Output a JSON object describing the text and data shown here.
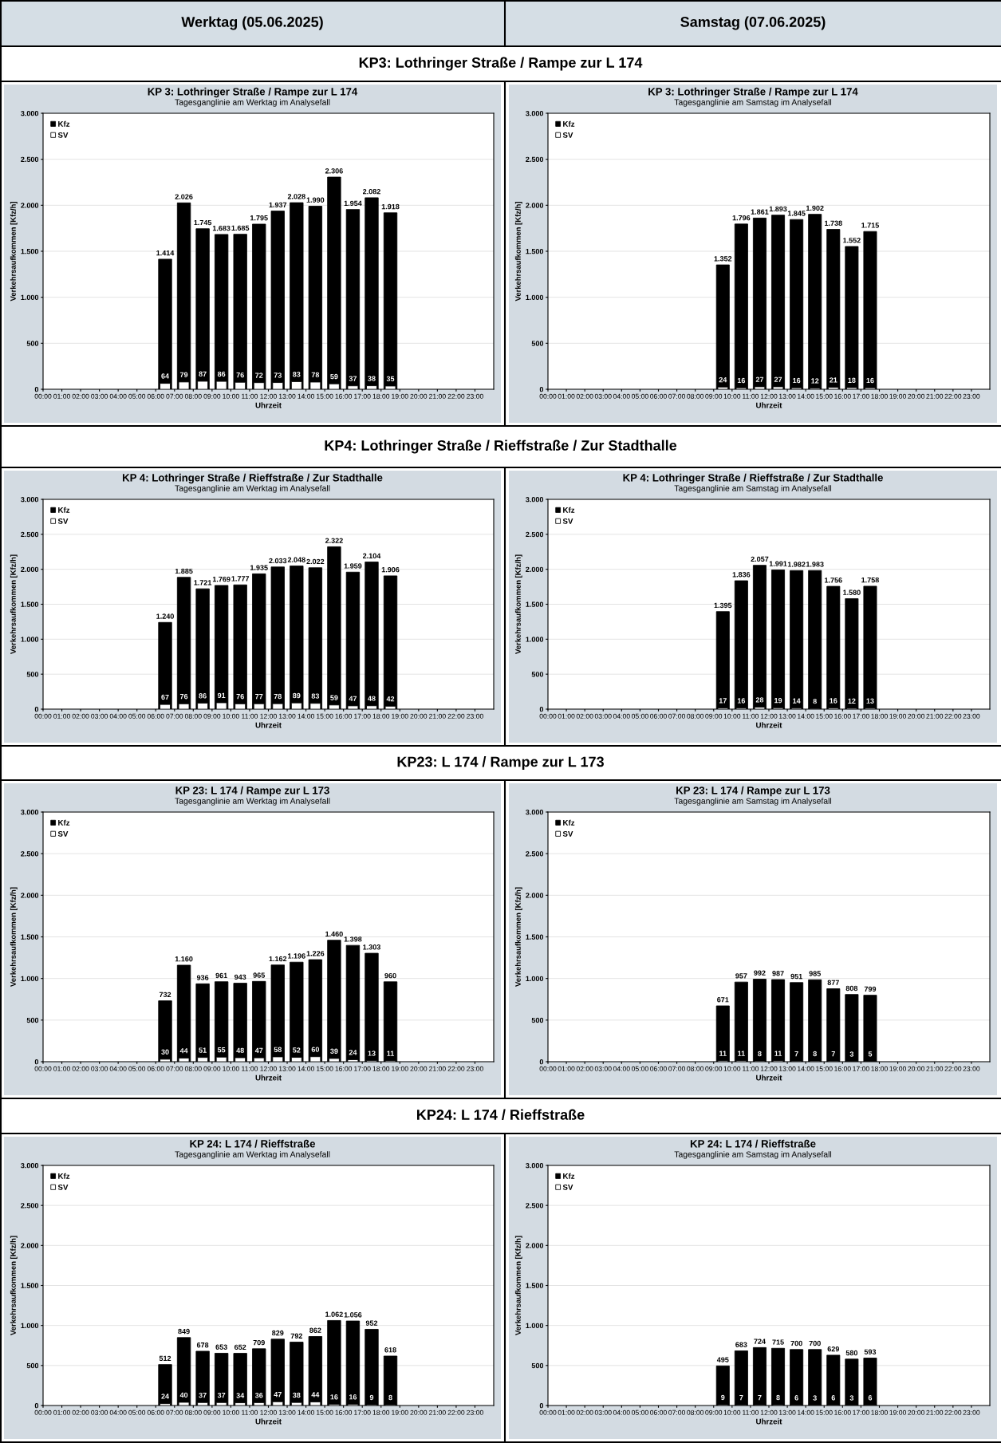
{
  "chart_data": [
    {
      "type": "bar",
      "title": "KP 3: Lothringer Straße / Rampe zur L 174",
      "subtitle": "Tagesganglinie am Werktag im Analysefall",
      "xlabel": "Uhrzeit",
      "ylabel": "Verkehrsaufkommen [Kfz/h]",
      "annotations": [
        "Werktag (05.06.2025)",
        "KP3: Lothringer Straße / Rampe zur L 174"
      ],
      "legend": "top left",
      "grid": "y",
      "xlim": [
        0,
        24
      ],
      "ylim": [
        0,
        3000
      ],
      "xticks": [
        {
          "value": 0,
          "label": "00:00"
        },
        {
          "value": 1,
          "label": "01:00"
        },
        {
          "value": 2,
          "label": "02:00"
        },
        {
          "value": 3,
          "label": "03:00"
        },
        {
          "value": 4,
          "label": "04:00"
        },
        {
          "value": 5,
          "label": "05:00"
        },
        {
          "value": 6,
          "label": "06:00"
        },
        {
          "value": 7,
          "label": "07:00"
        },
        {
          "value": 8,
          "label": "08:00"
        },
        {
          "value": 9,
          "label": "09:00"
        },
        {
          "value": 10,
          "label": "10:00"
        },
        {
          "value": 11,
          "label": "11:00"
        },
        {
          "value": 12,
          "label": "12:00"
        },
        {
          "value": 13,
          "label": "13:00"
        },
        {
          "value": 14,
          "label": "14:00"
        },
        {
          "value": 15,
          "label": "15:00"
        },
        {
          "value": 16,
          "label": "16:00"
        },
        {
          "value": 17,
          "label": "17:00"
        },
        {
          "value": 18,
          "label": "18:00"
        },
        {
          "value": 19,
          "label": "19:00"
        },
        {
          "value": 20,
          "label": "20:00"
        },
        {
          "value": 21,
          "label": "21:00"
        },
        {
          "value": 22,
          "label": "22:00"
        },
        {
          "value": 23,
          "label": "23:00"
        }
      ],
      "yticks": [
        0,
        500,
        {
          "value": 1000,
          "label": "1.000"
        },
        {
          "value": 1500,
          "label": "1.500"
        },
        {
          "value": 2000,
          "label": "2.000"
        },
        {
          "value": 2500,
          "label": "2.500"
        },
        {
          "value": 3000,
          "label": "3.000"
        }
      ],
      "x": [
        6.5,
        7.5,
        8.5,
        9.5,
        10.5,
        11.5,
        12.5,
        13.5,
        14.5,
        15.5,
        16.5,
        17.5,
        18.5
      ],
      "series": [
        {
          "name": "Kfz",
          "color": "#000000",
          "values": [
            1414,
            2026,
            1745,
            1683,
            1685,
            1795,
            1937,
            2028,
            1990,
            2306,
            1954,
            2082,
            1918
          ],
          "value_labels": [
            "1.414",
            "2.026",
            "1.745",
            "1.683",
            "1.685",
            "1.795",
            "1.937",
            "2.028",
            "1.990",
            "2.306",
            "1.954",
            "2.082",
            "1.918"
          ]
        },
        {
          "name": "SV",
          "color": "#ffffff",
          "values": [
            64,
            79,
            87,
            86,
            76,
            72,
            73,
            83,
            78,
            59,
            37,
            38,
            35
          ],
          "value_labels": [
            "64",
            "79",
            "87",
            "86",
            "76",
            "72",
            "73",
            "83",
            "78",
            "59",
            "37",
            "38",
            "35"
          ]
        }
      ]
    },
    {
      "type": "bar",
      "title": "KP 3: Lothringer Straße / Rampe zur L 174",
      "subtitle": "Tagesganglinie am Samstag im Analysefall",
      "xlabel": "Uhrzeit",
      "ylabel": "Verkehrsaufkommen [Kfz/h]",
      "annotations": [
        "Samstag (07.06.2025)"
      ],
      "legend": "top left",
      "grid": "y",
      "xlim": [
        0,
        24
      ],
      "ylim": [
        0,
        3000
      ],
      "xticks": [
        {
          "value": 0,
          "label": "00:00"
        },
        {
          "value": 1,
          "label": "01:00"
        },
        {
          "value": 2,
          "label": "02:00"
        },
        {
          "value": 3,
          "label": "03:00"
        },
        {
          "value": 4,
          "label": "04:00"
        },
        {
          "value": 5,
          "label": "05:00"
        },
        {
          "value": 6,
          "label": "06:00"
        },
        {
          "value": 7,
          "label": "07:00"
        },
        {
          "value": 8,
          "label": "08:00"
        },
        {
          "value": 9,
          "label": "09:00"
        },
        {
          "value": 10,
          "label": "10:00"
        },
        {
          "value": 11,
          "label": "11:00"
        },
        {
          "value": 12,
          "label": "12:00"
        },
        {
          "value": 13,
          "label": "13:00"
        },
        {
          "value": 14,
          "label": "14:00"
        },
        {
          "value": 15,
          "label": "15:00"
        },
        {
          "value": 16,
          "label": "16:00"
        },
        {
          "value": 17,
          "label": "17:00"
        },
        {
          "value": 18,
          "label": "18:00"
        },
        {
          "value": 19,
          "label": "19:00"
        },
        {
          "value": 20,
          "label": "20:00"
        },
        {
          "value": 21,
          "label": "21:00"
        },
        {
          "value": 22,
          "label": "22:00"
        },
        {
          "value": 23,
          "label": "23:00"
        }
      ],
      "yticks": [
        0,
        500,
        {
          "value": 1000,
          "label": "1.000"
        },
        {
          "value": 1500,
          "label": "1.500"
        },
        {
          "value": 2000,
          "label": "2.000"
        },
        {
          "value": 2500,
          "label": "2.500"
        },
        {
          "value": 3000,
          "label": "3.000"
        }
      ],
      "x": [
        9.5,
        10.5,
        11.5,
        12.5,
        13.5,
        14.5,
        15.5,
        16.5,
        17.5
      ],
      "series": [
        {
          "name": "Kfz",
          "color": "#000000",
          "values": [
            1352,
            1796,
            1861,
            1893,
            1845,
            1902,
            1738,
            1552,
            1715
          ],
          "value_labels": [
            "1.352",
            "1.796",
            "1.861",
            "1.893",
            "1.845",
            "1.902",
            "1.738",
            "1.552",
            "1.715"
          ]
        },
        {
          "name": "SV",
          "color": "#ffffff",
          "values": [
            24,
            16,
            27,
            27,
            16,
            12,
            21,
            18,
            16
          ],
          "value_labels": [
            "24",
            "16",
            "27",
            "27",
            "16",
            "12",
            "21",
            "18",
            "16"
          ]
        }
      ]
    },
    {
      "type": "bar",
      "title": "KP 4: Lothringer Straße / Rieffstraße / Zur Stadthalle",
      "subtitle": "Tagesganglinie am Werktag im Analysefall",
      "xlabel": "Uhrzeit",
      "ylabel": "Verkehrsaufkommen [Kfz/h]",
      "annotations": [
        "KP4: Lothringer Straße / Rieffstraße / Zur Stadthalle"
      ],
      "legend": "top left",
      "grid": "y",
      "xlim": [
        0,
        24
      ],
      "ylim": [
        0,
        3000
      ],
      "xticks": [
        {
          "value": 0,
          "label": "00:00"
        },
        {
          "value": 1,
          "label": "01:00"
        },
        {
          "value": 2,
          "label": "02:00"
        },
        {
          "value": 3,
          "label": "03:00"
        },
        {
          "value": 4,
          "label": "04:00"
        },
        {
          "value": 5,
          "label": "05:00"
        },
        {
          "value": 6,
          "label": "06:00"
        },
        {
          "value": 7,
          "label": "07:00"
        },
        {
          "value": 8,
          "label": "08:00"
        },
        {
          "value": 9,
          "label": "09:00"
        },
        {
          "value": 10,
          "label": "10:00"
        },
        {
          "value": 11,
          "label": "11:00"
        },
        {
          "value": 12,
          "label": "12:00"
        },
        {
          "value": 13,
          "label": "13:00"
        },
        {
          "value": 14,
          "label": "14:00"
        },
        {
          "value": 15,
          "label": "15:00"
        },
        {
          "value": 16,
          "label": "16:00"
        },
        {
          "value": 17,
          "label": "17:00"
        },
        {
          "value": 18,
          "label": "18:00"
        },
        {
          "value": 19,
          "label": "19:00"
        },
        {
          "value": 20,
          "label": "20:00"
        },
        {
          "value": 21,
          "label": "21:00"
        },
        {
          "value": 22,
          "label": "22:00"
        },
        {
          "value": 23,
          "label": "23:00"
        }
      ],
      "yticks": [
        0,
        500,
        {
          "value": 1000,
          "label": "1.000"
        },
        {
          "value": 1500,
          "label": "1.500"
        },
        {
          "value": 2000,
          "label": "2.000"
        },
        {
          "value": 2500,
          "label": "2.500"
        },
        {
          "value": 3000,
          "label": "3.000"
        }
      ],
      "x": [
        6.5,
        7.5,
        8.5,
        9.5,
        10.5,
        11.5,
        12.5,
        13.5,
        14.5,
        15.5,
        16.5,
        17.5,
        18.5
      ],
      "series": [
        {
          "name": "Kfz",
          "color": "#000000",
          "values": [
            1240,
            1885,
            1721,
            1769,
            1777,
            1935,
            2033,
            2048,
            2022,
            2322,
            1959,
            2104,
            1906
          ],
          "value_labels": [
            "1.240",
            "1.885",
            "1.721",
            "1.769",
            "1.777",
            "1.935",
            "2.033",
            "2.048",
            "2.022",
            "2.322",
            "1.959",
            "2.104",
            "1.906"
          ]
        },
        {
          "name": "SV",
          "color": "#ffffff",
          "values": [
            67,
            76,
            86,
            91,
            76,
            77,
            78,
            89,
            83,
            59,
            47,
            48,
            42
          ],
          "value_labels": [
            "67",
            "76",
            "86",
            "91",
            "76",
            "77",
            "78",
            "89",
            "83",
            "59",
            "47",
            "48",
            "42"
          ]
        }
      ]
    },
    {
      "type": "bar",
      "title": "KP 4: Lothringer Straße / Rieffstraße / Zur Stadthalle",
      "subtitle": "Tagesganglinie am Samstag im Analysefall",
      "xlabel": "Uhrzeit",
      "ylabel": "Verkehrsaufkommen [Kfz/h]",
      "legend": "top left",
      "grid": "y",
      "xlim": [
        0,
        24
      ],
      "ylim": [
        0,
        3000
      ],
      "xticks": [
        {
          "value": 0,
          "label": "00:00"
        },
        {
          "value": 1,
          "label": "01:00"
        },
        {
          "value": 2,
          "label": "02:00"
        },
        {
          "value": 3,
          "label": "03:00"
        },
        {
          "value": 4,
          "label": "04:00"
        },
        {
          "value": 5,
          "label": "05:00"
        },
        {
          "value": 6,
          "label": "06:00"
        },
        {
          "value": 7,
          "label": "07:00"
        },
        {
          "value": 8,
          "label": "08:00"
        },
        {
          "value": 9,
          "label": "09:00"
        },
        {
          "value": 10,
          "label": "10:00"
        },
        {
          "value": 11,
          "label": "11:00"
        },
        {
          "value": 12,
          "label": "12:00"
        },
        {
          "value": 13,
          "label": "13:00"
        },
        {
          "value": 14,
          "label": "14:00"
        },
        {
          "value": 15,
          "label": "15:00"
        },
        {
          "value": 16,
          "label": "16:00"
        },
        {
          "value": 17,
          "label": "17:00"
        },
        {
          "value": 18,
          "label": "18:00"
        },
        {
          "value": 19,
          "label": "19:00"
        },
        {
          "value": 20,
          "label": "20:00"
        },
        {
          "value": 21,
          "label": "21:00"
        },
        {
          "value": 22,
          "label": "22:00"
        },
        {
          "value": 23,
          "label": "23:00"
        }
      ],
      "yticks": [
        0,
        500,
        {
          "value": 1000,
          "label": "1.000"
        },
        {
          "value": 1500,
          "label": "1.500"
        },
        {
          "value": 2000,
          "label": "2.000"
        },
        {
          "value": 2500,
          "label": "2.500"
        },
        {
          "value": 3000,
          "label": "3.000"
        }
      ],
      "x": [
        9.5,
        10.5,
        11.5,
        12.5,
        13.5,
        14.5,
        15.5,
        16.5,
        17.5
      ],
      "series": [
        {
          "name": "Kfz",
          "color": "#000000",
          "values": [
            1395,
            1836,
            2057,
            1991,
            1982,
            1983,
            1756,
            1580,
            1758
          ],
          "value_labels": [
            "1.395",
            "1.836",
            "2.057",
            "1.991",
            "1.982",
            "1.983",
            "1.756",
            "1.580",
            "1.758"
          ]
        },
        {
          "name": "SV",
          "color": "#ffffff",
          "values": [
            17,
            16,
            28,
            19,
            14,
            8,
            16,
            12,
            13
          ],
          "value_labels": [
            "17",
            "16",
            "28",
            "19",
            "14",
            "8",
            "16",
            "12",
            "13"
          ]
        }
      ]
    },
    {
      "type": "bar",
      "title": "KP 23: L 174 / Rampe zur L 173",
      "subtitle": "Tagesganglinie am Werktag im Analysefall",
      "xlabel": "Uhrzeit",
      "ylabel": "Verkehrsaufkommen [Kfz/h]",
      "annotations": [
        "KP23: L 174 / Rampe zur L 173"
      ],
      "legend": "top left",
      "grid": "y",
      "xlim": [
        0,
        24
      ],
      "ylim": [
        0,
        3000
      ],
      "xticks": [
        {
          "value": 0,
          "label": "00:00"
        },
        {
          "value": 1,
          "label": "01:00"
        },
        {
          "value": 2,
          "label": "02:00"
        },
        {
          "value": 3,
          "label": "03:00"
        },
        {
          "value": 4,
          "label": "04:00"
        },
        {
          "value": 5,
          "label": "05:00"
        },
        {
          "value": 6,
          "label": "06:00"
        },
        {
          "value": 7,
          "label": "07:00"
        },
        {
          "value": 8,
          "label": "08:00"
        },
        {
          "value": 9,
          "label": "09:00"
        },
        {
          "value": 10,
          "label": "10:00"
        },
        {
          "value": 11,
          "label": "11:00"
        },
        {
          "value": 12,
          "label": "12:00"
        },
        {
          "value": 13,
          "label": "13:00"
        },
        {
          "value": 14,
          "label": "14:00"
        },
        {
          "value": 15,
          "label": "15:00"
        },
        {
          "value": 16,
          "label": "16:00"
        },
        {
          "value": 17,
          "label": "17:00"
        },
        {
          "value": 18,
          "label": "18:00"
        },
        {
          "value": 19,
          "label": "19:00"
        },
        {
          "value": 20,
          "label": "20:00"
        },
        {
          "value": 21,
          "label": "21:00"
        },
        {
          "value": 22,
          "label": "22:00"
        },
        {
          "value": 23,
          "label": "23:00"
        }
      ],
      "yticks": [
        0,
        500,
        {
          "value": 1000,
          "label": "1.000"
        },
        {
          "value": 1500,
          "label": "1.500"
        },
        {
          "value": 2000,
          "label": "2.000"
        },
        {
          "value": 2500,
          "label": "2.500"
        },
        {
          "value": 3000,
          "label": "3.000"
        }
      ],
      "x": [
        6.5,
        7.5,
        8.5,
        9.5,
        10.5,
        11.5,
        12.5,
        13.5,
        14.5,
        15.5,
        16.5,
        17.5,
        18.5
      ],
      "series": [
        {
          "name": "Kfz",
          "color": "#000000",
          "values": [
            732,
            1160,
            936,
            961,
            943,
            965,
            1162,
            1196,
            1226,
            1460,
            1398,
            1303,
            960
          ],
          "value_labels": [
            "732",
            "1.160",
            "936",
            "961",
            "943",
            "965",
            "1.162",
            "1.196",
            "1.226",
            "1.460",
            "1.398",
            "1.303",
            "960"
          ]
        },
        {
          "name": "SV",
          "color": "#ffffff",
          "values": [
            30,
            44,
            51,
            55,
            48,
            47,
            58,
            52,
            60,
            39,
            24,
            13,
            11
          ],
          "value_labels": [
            "30",
            "44",
            "51",
            "55",
            "48",
            "47",
            "58",
            "52",
            "60",
            "39",
            "24",
            "13",
            "11"
          ]
        }
      ]
    },
    {
      "type": "bar",
      "title": "KP 23: L 174 / Rampe zur L 173",
      "subtitle": "Tagesganglinie am Samstag im Analysefall",
      "xlabel": "Uhrzeit",
      "ylabel": "Verkehrsaufkommen [Kfz/h]",
      "legend": "top left",
      "grid": "y",
      "xlim": [
        0,
        24
      ],
      "ylim": [
        0,
        3000
      ],
      "xticks": [
        {
          "value": 0,
          "label": "00:00"
        },
        {
          "value": 1,
          "label": "01:00"
        },
        {
          "value": 2,
          "label": "02:00"
        },
        {
          "value": 3,
          "label": "03:00"
        },
        {
          "value": 4,
          "label": "04:00"
        },
        {
          "value": 5,
          "label": "05:00"
        },
        {
          "value": 6,
          "label": "06:00"
        },
        {
          "value": 7,
          "label": "07:00"
        },
        {
          "value": 8,
          "label": "08:00"
        },
        {
          "value": 9,
          "label": "09:00"
        },
        {
          "value": 10,
          "label": "10:00"
        },
        {
          "value": 11,
          "label": "11:00"
        },
        {
          "value": 12,
          "label": "12:00"
        },
        {
          "value": 13,
          "label": "13:00"
        },
        {
          "value": 14,
          "label": "14:00"
        },
        {
          "value": 15,
          "label": "15:00"
        },
        {
          "value": 16,
          "label": "16:00"
        },
        {
          "value": 17,
          "label": "17:00"
        },
        {
          "value": 18,
          "label": "18:00"
        },
        {
          "value": 19,
          "label": "19:00"
        },
        {
          "value": 20,
          "label": "20:00"
        },
        {
          "value": 21,
          "label": "21:00"
        },
        {
          "value": 22,
          "label": "22:00"
        },
        {
          "value": 23,
          "label": "23:00"
        }
      ],
      "yticks": [
        0,
        500,
        {
          "value": 1000,
          "label": "1.000"
        },
        {
          "value": 1500,
          "label": "1.500"
        },
        {
          "value": 2000,
          "label": "2.000"
        },
        {
          "value": 2500,
          "label": "2.500"
        },
        {
          "value": 3000,
          "label": "3.000"
        }
      ],
      "x": [
        9.5,
        10.5,
        11.5,
        12.5,
        13.5,
        14.5,
        15.5,
        16.5,
        17.5
      ],
      "series": [
        {
          "name": "Kfz",
          "color": "#000000",
          "values": [
            671,
            957,
            992,
            987,
            951,
            985,
            877,
            808,
            799
          ],
          "value_labels": [
            "671",
            "957",
            "992",
            "987",
            "951",
            "985",
            "877",
            "808",
            "799"
          ]
        },
        {
          "name": "SV",
          "color": "#ffffff",
          "values": [
            11,
            11,
            8,
            11,
            7,
            8,
            7,
            3,
            5
          ],
          "value_labels": [
            "11",
            "11",
            "8",
            "11",
            "7",
            "8",
            "7",
            "3",
            "5"
          ]
        }
      ]
    },
    {
      "type": "bar",
      "title": "KP 24: L 174 / Rieffstraße",
      "subtitle": "Tagesganglinie am Werktag im Analysefall",
      "xlabel": "Uhrzeit",
      "ylabel": "Verkehrsaufkommen [Kfz/h]",
      "annotations": [
        "KP24: L 174 / Rieffstraße"
      ],
      "legend": "top left",
      "grid": "y",
      "xlim": [
        0,
        24
      ],
      "ylim": [
        0,
        3000
      ],
      "xticks": [
        {
          "value": 0,
          "label": "00:00"
        },
        {
          "value": 1,
          "label": "01:00"
        },
        {
          "value": 2,
          "label": "02:00"
        },
        {
          "value": 3,
          "label": "03:00"
        },
        {
          "value": 4,
          "label": "04:00"
        },
        {
          "value": 5,
          "label": "05:00"
        },
        {
          "value": 6,
          "label": "06:00"
        },
        {
          "value": 7,
          "label": "07:00"
        },
        {
          "value": 8,
          "label": "08:00"
        },
        {
          "value": 9,
          "label": "09:00"
        },
        {
          "value": 10,
          "label": "10:00"
        },
        {
          "value": 11,
          "label": "11:00"
        },
        {
          "value": 12,
          "label": "12:00"
        },
        {
          "value": 13,
          "label": "13:00"
        },
        {
          "value": 14,
          "label": "14:00"
        },
        {
          "value": 15,
          "label": "15:00"
        },
        {
          "value": 16,
          "label": "16:00"
        },
        {
          "value": 17,
          "label": "17:00"
        },
        {
          "value": 18,
          "label": "18:00"
        },
        {
          "value": 19,
          "label": "19:00"
        },
        {
          "value": 20,
          "label": "20:00"
        },
        {
          "value": 21,
          "label": "21:00"
        },
        {
          "value": 22,
          "label": "22:00"
        },
        {
          "value": 23,
          "label": "23:00"
        }
      ],
      "yticks": [
        0,
        500,
        {
          "value": 1000,
          "label": "1.000"
        },
        {
          "value": 1500,
          "label": "1.500"
        },
        {
          "value": 2000,
          "label": "2.000"
        },
        {
          "value": 2500,
          "label": "2.500"
        },
        {
          "value": 3000,
          "label": "3.000"
        }
      ],
      "x": [
        6.5,
        7.5,
        8.5,
        9.5,
        10.5,
        11.5,
        12.5,
        13.5,
        14.5,
        15.5,
        16.5,
        17.5,
        18.5
      ],
      "series": [
        {
          "name": "Kfz",
          "color": "#000000",
          "values": [
            512,
            849,
            678,
            653,
            652,
            709,
            829,
            792,
            862,
            1062,
            1056,
            952,
            618
          ],
          "value_labels": [
            "512",
            "849",
            "678",
            "653",
            "652",
            "709",
            "829",
            "792",
            "862",
            "1.062",
            "1.056",
            "952",
            "618"
          ]
        },
        {
          "name": "SV",
          "color": "#ffffff",
          "values": [
            24,
            40,
            37,
            37,
            34,
            36,
            47,
            38,
            44,
            16,
            16,
            9,
            8
          ],
          "value_labels": [
            "24",
            "40",
            "37",
            "37",
            "34",
            "36",
            "47",
            "38",
            "44",
            "16",
            "16",
            "9",
            "8"
          ]
        }
      ]
    },
    {
      "type": "bar",
      "title": "KP 24: L 174 / Rieffstraße",
      "subtitle": "Tagesganglinie am Samstag im Analysefall",
      "xlabel": "Uhrzeit",
      "ylabel": "Verkehrsaufkommen [Kfz/h]",
      "legend": "top left",
      "grid": "y",
      "xlim": [
        0,
        24
      ],
      "ylim": [
        0,
        3000
      ],
      "xticks": [
        {
          "value": 0,
          "label": "00:00"
        },
        {
          "value": 1,
          "label": "01:00"
        },
        {
          "value": 2,
          "label": "02:00"
        },
        {
          "value": 3,
          "label": "03:00"
        },
        {
          "value": 4,
          "label": "04:00"
        },
        {
          "value": 5,
          "label": "05:00"
        },
        {
          "value": 6,
          "label": "06:00"
        },
        {
          "value": 7,
          "label": "07:00"
        },
        {
          "value": 8,
          "label": "08:00"
        },
        {
          "value": 9,
          "label": "09:00"
        },
        {
          "value": 10,
          "label": "10:00"
        },
        {
          "value": 11,
          "label": "11:00"
        },
        {
          "value": 12,
          "label": "12:00"
        },
        {
          "value": 13,
          "label": "13:00"
        },
        {
          "value": 14,
          "label": "14:00"
        },
        {
          "value": 15,
          "label": "15:00"
        },
        {
          "value": 16,
          "label": "16:00"
        },
        {
          "value": 17,
          "label": "17:00"
        },
        {
          "value": 18,
          "label": "18:00"
        },
        {
          "value": 19,
          "label": "19:00"
        },
        {
          "value": 20,
          "label": "20:00"
        },
        {
          "value": 21,
          "label": "21:00"
        },
        {
          "value": 22,
          "label": "22:00"
        },
        {
          "value": 23,
          "label": "23:00"
        }
      ],
      "yticks": [
        0,
        500,
        {
          "value": 1000,
          "label": "1.000"
        },
        {
          "value": 1500,
          "label": "1.500"
        },
        {
          "value": 2000,
          "label": "2.000"
        },
        {
          "value": 2500,
          "label": "2.500"
        },
        {
          "value": 3000,
          "label": "3.000"
        }
      ],
      "x": [
        9.5,
        10.5,
        11.5,
        12.5,
        13.5,
        14.5,
        15.5,
        16.5,
        17.5
      ],
      "series": [
        {
          "name": "Kfz",
          "color": "#000000",
          "values": [
            495,
            683,
            724,
            715,
            700,
            700,
            629,
            580,
            593
          ],
          "value_labels": [
            "495",
            "683",
            "724",
            "715",
            "700",
            "700",
            "629",
            "580",
            "593"
          ]
        },
        {
          "name": "SV",
          "color": "#ffffff",
          "values": [
            9,
            7,
            7,
            8,
            6,
            3,
            6,
            3,
            6
          ],
          "value_labels": [
            "9",
            "7",
            "7",
            "8",
            "6",
            "3",
            "6",
            "3",
            "6"
          ]
        }
      ]
    }
  ]
}
